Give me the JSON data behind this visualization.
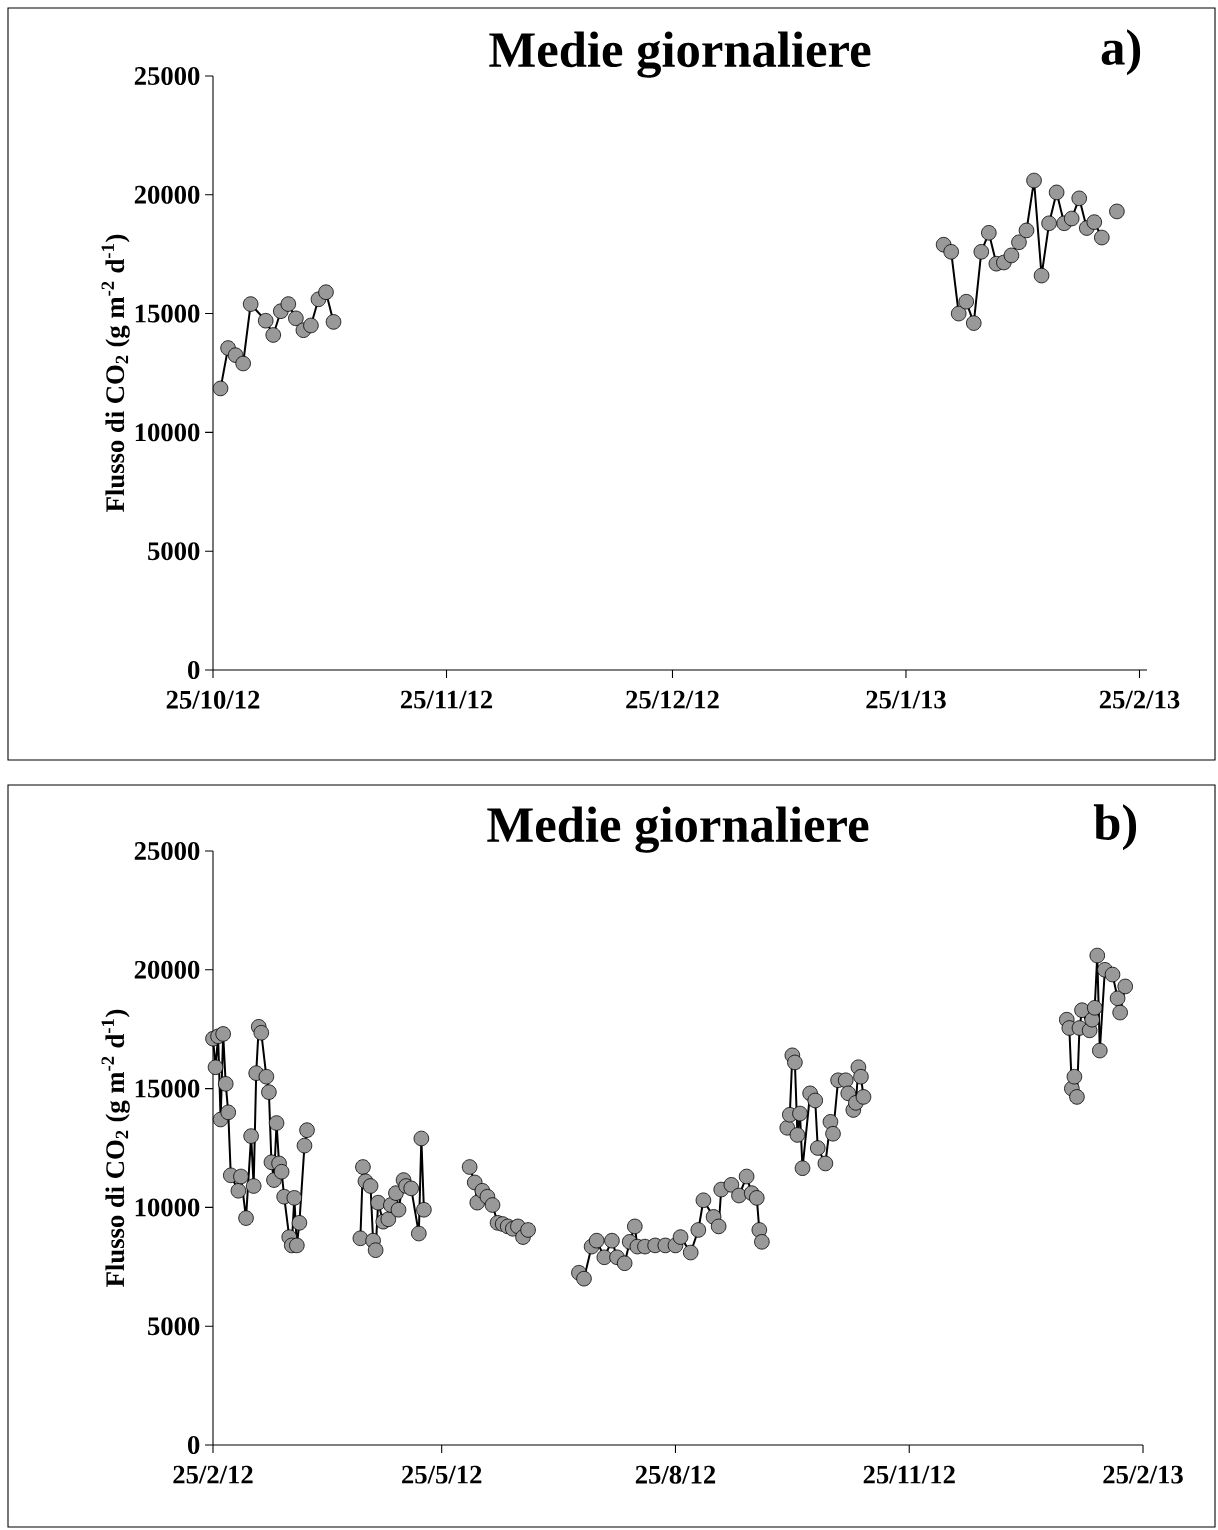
{
  "chart_data": [
    {
      "type": "line",
      "title": "Medie giornaliere",
      "ylabel": "Flusso di CO$_{2}$ (g m$^{-2}$ d$^{-1}$)",
      "annotations": [
        "a)"
      ],
      "x": [
        "2012-10-26",
        "2012-10-27",
        "2012-10-28",
        "2012-10-29",
        "2012-10-30",
        "2012-11-01",
        "2012-11-02",
        "2012-11-03",
        "2012-11-04",
        "2012-11-05",
        "2012-11-06",
        "2012-11-07",
        "2012-11-08",
        "2012-11-09",
        "2012-11-10",
        "2012-12-25",
        "2013-01-30",
        "2013-01-31",
        "2013-02-01",
        "2013-02-02",
        "2013-02-03",
        "2013-02-04",
        "2013-02-05",
        "2013-02-06",
        "2013-02-07",
        "2013-02-08",
        "2013-02-09",
        "2013-02-10",
        "2013-02-11",
        "2013-02-12",
        "2013-02-13",
        "2013-02-14",
        "2013-02-15",
        "2013-02-16",
        "2013-02-17",
        "2013-02-18",
        "2013-02-19",
        "2013-02-20",
        "2013-02-21",
        "2013-02-22"
      ],
      "values": [
        11850,
        13550,
        13250,
        12900,
        15400,
        14700,
        14100,
        15100,
        15400,
        14800,
        14300,
        14500,
        15600,
        15900,
        14650,
        null,
        17900,
        17600,
        15000,
        15500,
        14600,
        17600,
        18400,
        17100,
        17150,
        17450,
        18000,
        18500,
        20600,
        16600,
        18800,
        20100,
        18800,
        19000,
        19850,
        18600,
        18850,
        18200,
        null,
        19300
      ],
      "color": "#999999",
      "marker": "circle",
      "xlim": [
        "2012-10-25",
        "2013-02-26"
      ],
      "xticks": [
        {
          "value": "2012-10-25",
          "label": "25/10/12"
        },
        {
          "value": "2012-11-25",
          "label": "25/11/12"
        },
        {
          "value": "2012-12-25",
          "label": "25/12/12"
        },
        {
          "value": "2013-01-25",
          "label": "25/1/13"
        },
        {
          "value": "2013-02-25",
          "label": "25/2/13"
        }
      ],
      "ylim": [
        0,
        25000
      ],
      "yticks": [
        0,
        5000,
        10000,
        15000,
        20000,
        25000
      ]
    },
    {
      "type": "line",
      "title": "Medie giornaliere",
      "ylabel": "Flusso di CO$_{2}$ (g m$^{-2}$ d$^{-1}$)",
      "annotations": [
        "b)"
      ],
      "x": [
        "2012-02-25",
        "2012-02-26",
        "2012-02-27",
        "2012-02-28",
        "2012-02-29",
        "2012-03-01",
        "2012-03-02",
        "2012-03-03",
        "2012-03-06",
        "2012-03-07",
        "2012-03-09",
        "2012-03-11",
        "2012-03-12",
        "2012-03-13",
        "2012-03-14",
        "2012-03-15",
        "2012-03-17",
        "2012-03-18",
        "2012-03-19",
        "2012-03-20",
        "2012-03-21",
        "2012-03-22",
        "2012-03-23",
        "2012-03-24",
        "2012-03-26",
        "2012-03-27",
        "2012-03-28",
        "2012-03-29",
        "2012-03-30",
        "2012-04-01",
        "2012-04-02",
        "2012-04-12",
        "2012-04-23",
        "2012-04-24",
        "2012-04-25",
        "2012-04-27",
        "2012-04-28",
        "2012-04-29",
        "2012-04-30",
        "2012-05-02",
        "2012-05-04",
        "2012-05-05",
        "2012-05-07",
        "2012-05-08",
        "2012-05-10",
        "2012-05-11",
        "2012-05-13",
        "2012-05-16",
        "2012-05-17",
        "2012-05-18",
        "2012-05-27",
        "2012-06-05",
        "2012-06-07",
        "2012-06-08",
        "2012-06-10",
        "2012-06-12",
        "2012-06-14",
        "2012-06-16",
        "2012-06-18",
        "2012-06-20",
        "2012-06-22",
        "2012-06-24",
        "2012-06-26",
        "2012-06-28",
        "2012-07-10",
        "2012-07-18",
        "2012-07-20",
        "2012-07-23",
        "2012-07-25",
        "2012-07-28",
        "2012-07-31",
        "2012-08-02",
        "2012-08-05",
        "2012-08-07",
        "2012-08-09",
        "2012-08-10",
        "2012-08-13",
        "2012-08-17",
        "2012-08-21",
        "2012-08-25",
        "2012-08-27",
        "2012-08-31",
        "2012-09-03",
        "2012-09-05",
        "2012-09-09",
        "2012-09-11",
        "2012-09-12",
        "2012-09-16",
        "2012-09-19",
        "2012-09-22",
        "2012-09-24",
        "2012-09-26",
        "2012-09-27",
        "2012-09-28",
        "2012-10-03",
        "2012-10-08",
        "2012-10-09",
        "2012-10-10",
        "2012-10-11",
        "2012-10-12",
        "2012-10-13",
        "2012-10-14",
        "2012-10-17",
        "2012-10-19",
        "2012-10-20",
        "2012-10-23",
        "2012-10-25",
        "2012-10-26",
        "2012-10-28",
        "2012-10-31",
        "2012-11-01",
        "2012-11-03",
        "2012-11-04",
        "2012-11-05",
        "2012-11-06",
        "2012-11-07",
        "2012-12-20",
        "2013-01-26",
        "2013-01-27",
        "2013-01-28",
        "2013-01-29",
        "2013-01-30",
        "2013-01-31",
        "2013-02-01",
        "2013-02-04",
        "2013-02-05",
        "2013-02-06",
        "2013-02-07",
        "2013-02-08",
        "2013-02-10",
        "2013-02-13",
        "2013-02-15",
        "2013-02-16",
        "2013-02-18"
      ],
      "values": [
        17100,
        15900,
        17200,
        13700,
        17300,
        15200,
        14000,
        11350,
        10700,
        11300,
        9550,
        13000,
        10900,
        15650,
        17600,
        17350,
        15500,
        14850,
        11900,
        11150,
        13550,
        11850,
        11500,
        10450,
        8750,
        8400,
        10400,
        8400,
        9350,
        12600,
        13250,
        null,
        8700,
        11700,
        11100,
        10900,
        8600,
        8200,
        10200,
        9400,
        9500,
        10100,
        10600,
        9900,
        11150,
        10900,
        10800,
        8900,
        12900,
        9900,
        null,
        11700,
        11050,
        10200,
        10700,
        10450,
        10100,
        9350,
        9300,
        9200,
        9100,
        9200,
        8750,
        9050,
        null,
        7250,
        7000,
        8350,
        8600,
        7900,
        8600,
        7900,
        7650,
        8550,
        9200,
        8350,
        8350,
        8400,
        8400,
        8400,
        8750,
        8100,
        9050,
        10300,
        9600,
        9200,
        10750,
        10950,
        10500,
        11300,
        10600,
        10400,
        9050,
        8550,
        null,
        13350,
        13900,
        16400,
        16100,
        13050,
        13950,
        11650,
        14800,
        14500,
        12500,
        11850,
        13600,
        13100,
        15350,
        15350,
        14800,
        14100,
        14400,
        15900,
        15500,
        14650,
        null,
        17900,
        17550,
        15000,
        15500,
        14650,
        17550,
        18300,
        17450,
        17900,
        18400,
        20600,
        16600,
        20000,
        19800,
        18800,
        18200,
        19300
      ],
      "color": "#999999",
      "marker": "circle",
      "xlim": [
        "2012-02-25",
        "2013-02-25"
      ],
      "xticks": [
        {
          "value": "2012-02-25",
          "label": "25/2/12"
        },
        {
          "value": "2012-05-25",
          "label": "25/5/12"
        },
        {
          "value": "2012-08-25",
          "label": "25/8/12"
        },
        {
          "value": "2012-11-25",
          "label": "25/11/12"
        },
        {
          "value": "2013-02-25",
          "label": "25/2/13"
        }
      ],
      "ylim": [
        0,
        25000
      ],
      "yticks": [
        0,
        5000,
        10000,
        15000,
        20000,
        25000
      ]
    }
  ]
}
